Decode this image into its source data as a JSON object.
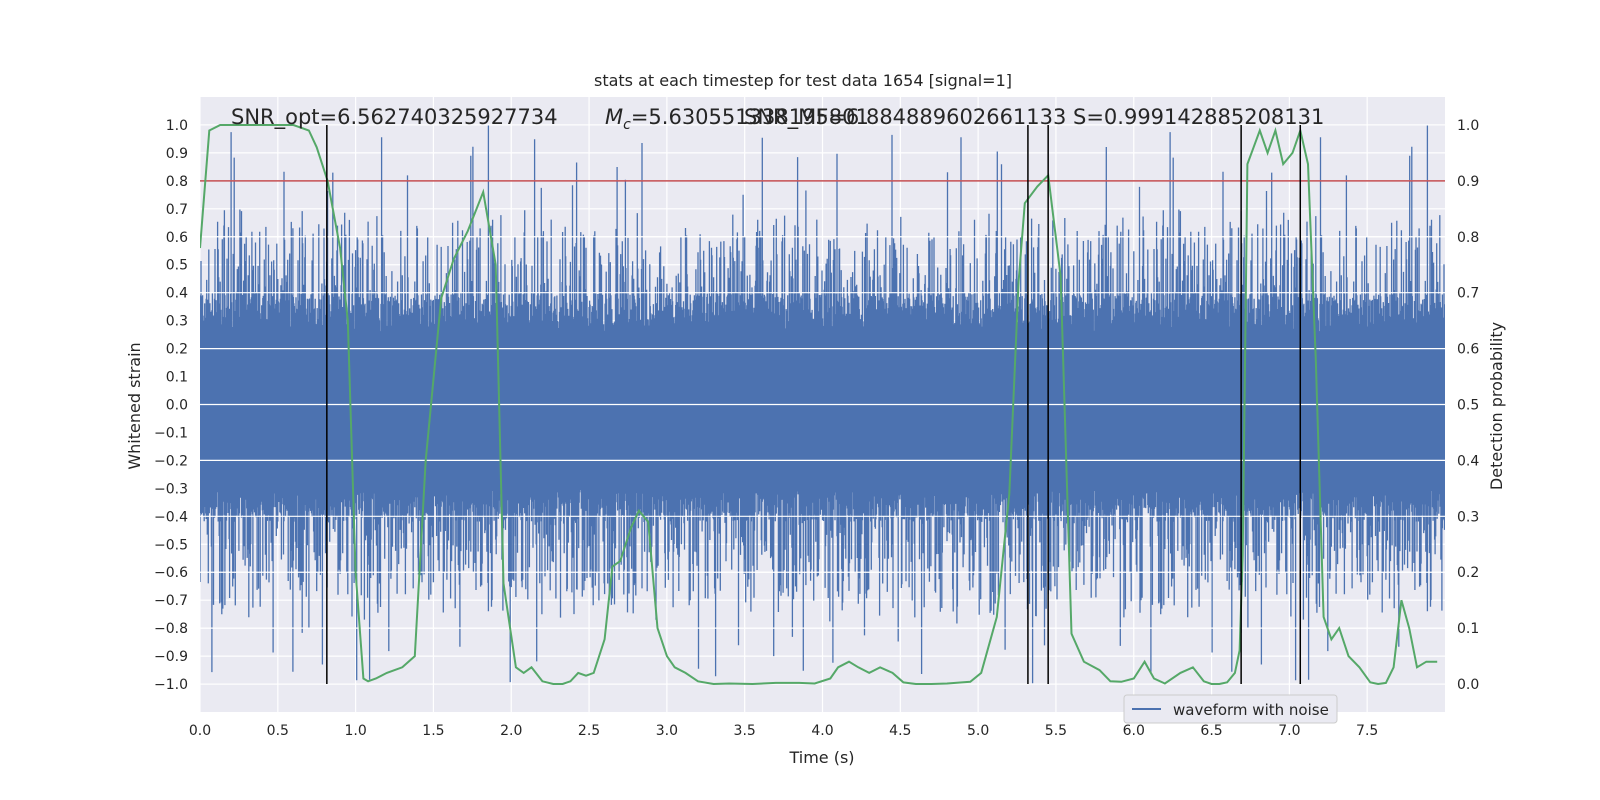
{
  "chart_data": {
    "type": "line",
    "title": "stats at each timestep for test data 1654 [signal=1]",
    "xlabel": "Time (s)",
    "ylabel": "Whitened strain",
    "y2label": "Detection probability",
    "xlim": [
      0.0,
      8.0
    ],
    "ylim": [
      -1.1,
      1.1
    ],
    "y2lim": [
      -0.05,
      1.05
    ],
    "xticks": [
      "0.0",
      "0.5",
      "1.0",
      "1.5",
      "2.0",
      "2.5",
      "3.0",
      "3.5",
      "4.0",
      "4.5",
      "5.0",
      "5.5",
      "6.0",
      "6.5",
      "7.0",
      "7.5"
    ],
    "yticks": [
      "1.0",
      "0.9",
      "0.8",
      "0.7",
      "0.6",
      "0.5",
      "0.4",
      "0.3",
      "0.2",
      "0.1",
      "0.0",
      "-0.1",
      "-0.2",
      "-0.3",
      "-0.4",
      "-0.5",
      "-0.6",
      "-0.7",
      "-0.8",
      "-0.9",
      "-1.0"
    ],
    "y2ticks": [
      "1.0",
      "0.9",
      "0.8",
      "0.7",
      "0.6",
      "0.5",
      "0.4",
      "0.3",
      "0.2",
      "0.1",
      "0.0"
    ],
    "annotations": {
      "snr_opt": "SNR_opt=6.562740325927734",
      "mc_symbol": "M",
      "mc_sub": "c",
      "mc_value": "=5.630551338195801",
      "snr_mf": "SNR_MF=6.884889602661133",
      "s_value": "S=0.999142885208131"
    },
    "threshold": 0.9,
    "threshold_color": "#c44e52",
    "vlines": [
      0.815,
      5.32,
      5.45,
      6.69,
      7.07
    ],
    "series": [
      {
        "name": "waveform with noise",
        "color": "#4c72b0",
        "description": "whitened strain, dense noise with envelope about ±0.4 and spikes to ±1.0"
      },
      {
        "name": "detection probability",
        "color": "#55a868",
        "axis": "right",
        "x": [
          0.0,
          0.06,
          0.13,
          0.2,
          0.3,
          0.4,
          0.5,
          0.6,
          0.7,
          0.75,
          0.82,
          0.9,
          0.95,
          1.0,
          1.05,
          1.08,
          1.13,
          1.2,
          1.3,
          1.38,
          1.45,
          1.55,
          1.63,
          1.72,
          1.82,
          1.9,
          1.95,
          2.03,
          2.08,
          2.13,
          2.2,
          2.27,
          2.33,
          2.38,
          2.43,
          2.48,
          2.53,
          2.6,
          2.65,
          2.7,
          2.77,
          2.82,
          2.88,
          2.94,
          3.0,
          3.05,
          3.12,
          3.2,
          3.3,
          3.4,
          3.55,
          3.7,
          3.85,
          3.95,
          4.05,
          4.1,
          4.17,
          4.23,
          4.3,
          4.37,
          4.45,
          4.52,
          4.6,
          4.7,
          4.8,
          4.95,
          5.02,
          5.12,
          5.2,
          5.26,
          5.3,
          5.38,
          5.45,
          5.53,
          5.6,
          5.68,
          5.78,
          5.85,
          5.92,
          6.0,
          6.07,
          6.13,
          6.2,
          6.3,
          6.38,
          6.45,
          6.5,
          6.55,
          6.6,
          6.65,
          6.68,
          6.7,
          6.73,
          6.77,
          6.81,
          6.86,
          6.91,
          6.96,
          7.02,
          7.07,
          7.12,
          7.17,
          7.22,
          7.27,
          7.32,
          7.38,
          7.45,
          7.52,
          7.57,
          7.62,
          7.67,
          7.72,
          7.77,
          7.82,
          7.88,
          7.95
        ],
        "values": [
          0.78,
          0.99,
          1.0,
          1.0,
          1.0,
          1.0,
          1.0,
          1.0,
          0.99,
          0.96,
          0.9,
          0.78,
          0.65,
          0.2,
          0.01,
          0.005,
          0.01,
          0.02,
          0.03,
          0.05,
          0.4,
          0.69,
          0.76,
          0.81,
          0.88,
          0.75,
          0.18,
          0.03,
          0.02,
          0.03,
          0.005,
          0.0,
          0.0,
          0.005,
          0.02,
          0.015,
          0.02,
          0.08,
          0.21,
          0.22,
          0.28,
          0.31,
          0.29,
          0.1,
          0.05,
          0.03,
          0.02,
          0.005,
          0.0,
          0.001,
          0.0,
          0.002,
          0.002,
          0.001,
          0.01,
          0.03,
          0.04,
          0.03,
          0.02,
          0.03,
          0.02,
          0.003,
          0.0,
          0.0,
          0.001,
          0.004,
          0.02,
          0.12,
          0.34,
          0.72,
          0.86,
          0.89,
          0.91,
          0.73,
          0.09,
          0.04,
          0.025,
          0.005,
          0.004,
          0.01,
          0.04,
          0.01,
          0.001,
          0.02,
          0.03,
          0.005,
          0.0,
          0.0,
          0.003,
          0.02,
          0.06,
          0.23,
          0.93,
          0.96,
          0.99,
          0.95,
          0.99,
          0.93,
          0.95,
          0.99,
          0.93,
          0.58,
          0.12,
          0.08,
          0.1,
          0.05,
          0.03,
          0.003,
          0.0,
          0.002,
          0.03,
          0.15,
          0.1,
          0.03,
          0.04,
          0.04
        ]
      }
    ],
    "legend": {
      "label": "waveform with noise",
      "location": "lower-right"
    }
  }
}
